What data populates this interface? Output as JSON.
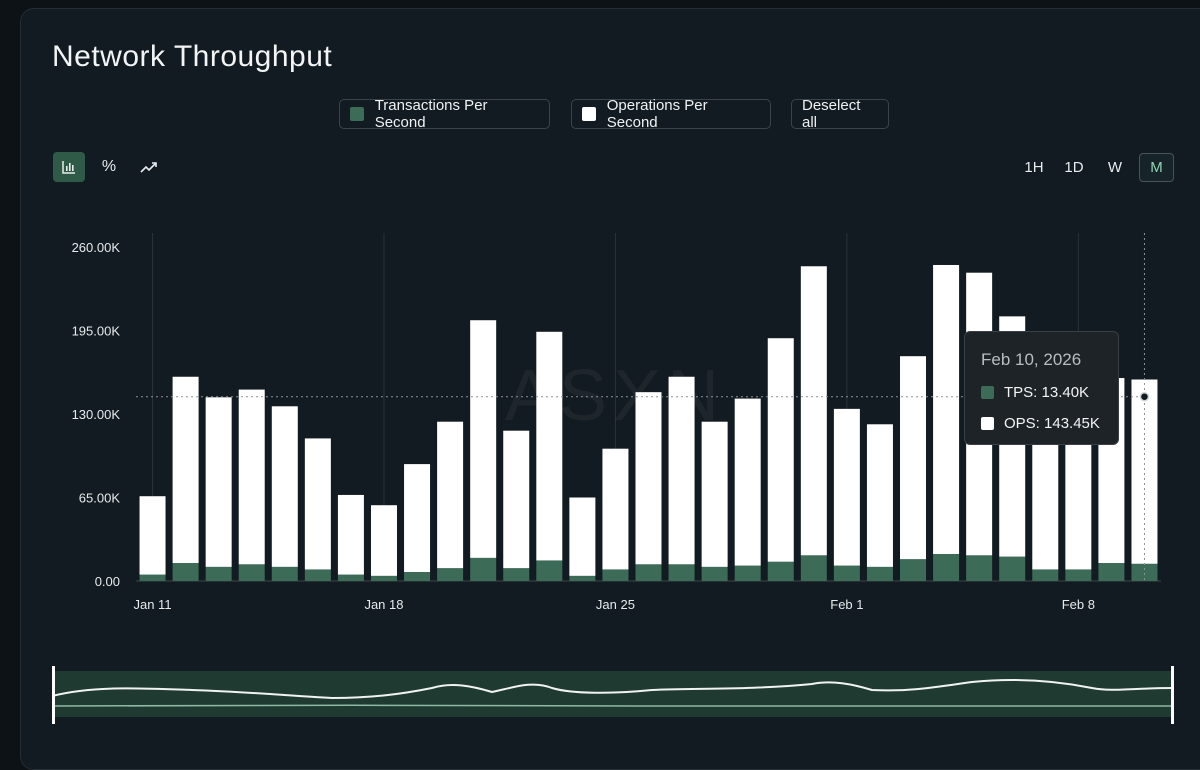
{
  "page": {
    "title": "Network Throughput"
  },
  "legend": {
    "items": [
      {
        "label": "Transactions Per Second",
        "color": "#3c6b57"
      },
      {
        "label": "Operations Per Second",
        "color": "#ffffff"
      }
    ],
    "deselect_label": "Deselect all"
  },
  "toolbar": {
    "chart_types": [
      {
        "icon": "bar-chart-icon",
        "active": true
      },
      {
        "icon": "percent-icon",
        "active": false
      },
      {
        "icon": "trend-icon",
        "active": false
      }
    ],
    "periods": [
      {
        "label": "1H",
        "active": false
      },
      {
        "label": "1D",
        "active": false
      },
      {
        "label": "W",
        "active": false
      },
      {
        "label": "M",
        "active": true
      }
    ]
  },
  "watermark": "ASXN",
  "tooltip": {
    "date": "Feb 10, 2026",
    "tps_label": "TPS: 13.40K",
    "ops_label": "OPS: 143.45K"
  },
  "chart_data": {
    "type": "bar",
    "stacked": true,
    "x_tick_labels": [
      "Jan 11",
      "Jan 18",
      "Jan 25",
      "Feb 1",
      "Feb 8"
    ],
    "y_tick_labels": [
      "0.00",
      "65.00K",
      "130.00K",
      "195.00K",
      "260.00K"
    ],
    "ylim": [
      0,
      260000
    ],
    "categories": [
      "Jan 11",
      "Jan 12",
      "Jan 13",
      "Jan 14",
      "Jan 15",
      "Jan 16",
      "Jan 17",
      "Jan 18",
      "Jan 19",
      "Jan 20",
      "Jan 21",
      "Jan 22",
      "Jan 23",
      "Jan 24",
      "Jan 25",
      "Jan 26",
      "Jan 27",
      "Jan 28",
      "Jan 29",
      "Jan 30",
      "Jan 31",
      "Feb 1",
      "Feb 2",
      "Feb 3",
      "Feb 4",
      "Feb 5",
      "Feb 6",
      "Feb 7",
      "Feb 8",
      "Feb 9",
      "Feb 10"
    ],
    "series": [
      {
        "name": "Transactions Per Second",
        "color": "#3c6b57",
        "values": [
          5000,
          14000,
          11000,
          13000,
          11000,
          9000,
          5000,
          4000,
          7000,
          10000,
          18000,
          10000,
          16000,
          4000,
          9000,
          13000,
          13000,
          11000,
          12000,
          15000,
          20000,
          12000,
          11000,
          17000,
          21000,
          20000,
          19000,
          9000,
          9000,
          14000,
          13400
        ]
      },
      {
        "name": "Operations Per Second",
        "color": "#ffffff",
        "values": [
          61000,
          145000,
          132000,
          136000,
          125000,
          102000,
          62000,
          55000,
          84000,
          114000,
          185000,
          107000,
          178000,
          61000,
          94000,
          134000,
          146000,
          113000,
          130000,
          174000,
          225000,
          122000,
          111000,
          158000,
          225000,
          220000,
          187000,
          150000,
          168000,
          144000,
          143450
        ]
      }
    ],
    "hover_index": 30
  }
}
